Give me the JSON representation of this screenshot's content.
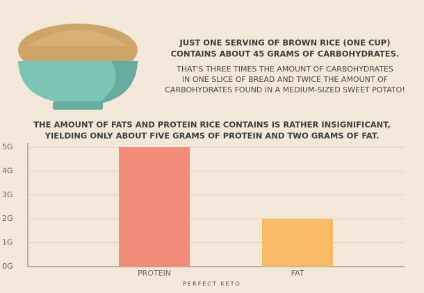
{
  "header": {
    "headline": [
      "JUST ONE SERVING OF BROWN RICE (ONE CUP)",
      "CONTAINS ABOUT 45 GRAMS OF CARBOHYDRATES."
    ],
    "body": [
      "THAT'S THREE TIMES THE AMOUNT OF CARBOHYDRATES",
      "IN ONE SLICE OF BREAD AND TWICE THE AMOUNT OF",
      "CARBOHYDRATES FOUND IN A MEDIUM-SIZED SWEET POTATO!"
    ]
  },
  "chart_data": {
    "type": "bar",
    "title": [
      "THE AMOUNT OF FATS AND PROTEIN RICE CONTAINS IS RATHER INSIGNIFICANT,",
      "YIELDING ONLY ABOUT FIVE GRAMS OF PROTEIN AND TWO GRAMS OF FAT."
    ],
    "categories": [
      "PROTEIN",
      "FAT"
    ],
    "values": [
      5,
      2
    ],
    "colors": [
      "#f18c79",
      "#f6bb64"
    ],
    "ylim": [
      0,
      5
    ],
    "yticks": [
      {
        "value": 0,
        "label": "0G"
      },
      {
        "value": 1,
        "label": "1G"
      },
      {
        "value": 2,
        "label": "2G"
      },
      {
        "value": 3,
        "label": "3G"
      },
      {
        "value": 4,
        "label": "4G"
      },
      {
        "value": 5,
        "label": "5G"
      }
    ],
    "grid": true
  },
  "footer": {
    "brand": "PERFECT KETO"
  }
}
